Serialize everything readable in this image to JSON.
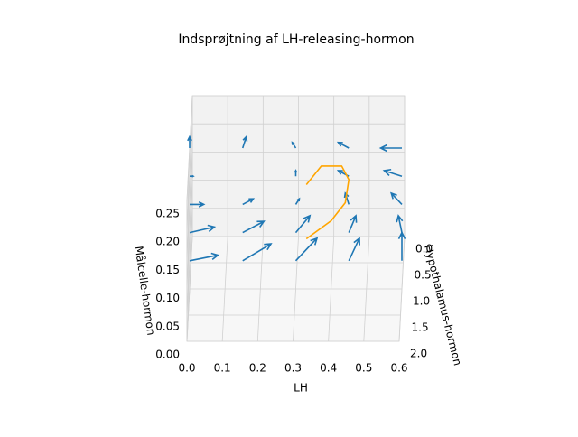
{
  "chart_data": {
    "type": "quiver3d",
    "title": "Indsprøjtning af LH-releasing-hormon",
    "xlabel": "LH",
    "ylabel": "Hypothalamus-hormon",
    "zlabel": "Målcelle-hormon",
    "xlim": [
      0,
      0.6
    ],
    "ylim": [
      0,
      2
    ],
    "zlim": [
      0,
      0.25
    ],
    "xticks": [
      {
        "value": 0,
        "label": "0.0"
      },
      0.1,
      0.2,
      0.3,
      0.4,
      0.5,
      0.6
    ],
    "yticks": [
      {
        "value": 0,
        "label": "0.0"
      },
      0.5,
      {
        "value": 1,
        "label": "1.0"
      },
      1.5,
      {
        "value": 2,
        "label": "2.0"
      }
    ],
    "zticks": [
      {
        "value": 0,
        "label": "0.00"
      },
      0.05,
      {
        "value": 0.1,
        "label": "0.10"
      },
      0.15,
      {
        "value": 0.2,
        "label": "0.20"
      },
      0.25
    ],
    "grid": true,
    "arrow_color": "#1f77b4",
    "arrows": {
      "x": [
        0,
        0.15,
        0.3,
        0.45,
        0.6,
        0,
        0.15,
        0.3,
        0.45,
        0.6,
        0,
        0.15,
        0.3,
        0.45,
        0.6,
        0,
        0.15,
        0.3,
        0.45,
        0.6,
        0,
        0.15,
        0.3,
        0.45,
        0.6
      ],
      "y": [
        1,
        1,
        1,
        1,
        1,
        1,
        1,
        1,
        1,
        1,
        1,
        1,
        1,
        1,
        1,
        1,
        1,
        1,
        1,
        1,
        1,
        1,
        1,
        1,
        1
      ],
      "z": [
        0.05,
        0.05,
        0.05,
        0.05,
        0.05,
        0.1,
        0.1,
        0.1,
        0.1,
        0.1,
        0.15,
        0.15,
        0.15,
        0.15,
        0.15,
        0.2,
        0.2,
        0.2,
        0.2,
        0.2,
        0.25,
        0.25,
        0.25,
        0.25,
        0.25
      ],
      "u": [
        0.08,
        0.08,
        0.06,
        0.03,
        0,
        0.07,
        0.06,
        0.04,
        0.02,
        -0.01,
        0.04,
        0.03,
        0.01,
        -0.01,
        -0.03,
        0.01,
        0,
        0,
        -0.03,
        -0.05,
        0,
        0.01,
        -0.01,
        -0.03,
        -0.06
      ],
      "v": [
        0,
        0,
        0,
        0,
        0,
        0,
        0,
        0,
        0,
        0,
        0,
        0,
        0,
        0,
        0,
        0,
        0,
        0,
        0,
        0,
        0,
        0,
        0,
        0,
        0
      ],
      "w": [
        0.01,
        0.03,
        0.04,
        0.04,
        0.05,
        0.01,
        0.02,
        0.03,
        0.03,
        0.03,
        0,
        0.01,
        0.01,
        0.02,
        0.02,
        0,
        0,
        0.01,
        0.01,
        0.01,
        0.02,
        0.02,
        0.01,
        0.01,
        0
      ]
    },
    "trajectory": {
      "color": "#ffa500",
      "x": [
        0.33,
        0.372,
        0.43,
        0.45,
        0.44,
        0.4,
        0.33
      ],
      "y": [
        1,
        1,
        1,
        1,
        1,
        1,
        1
      ],
      "z": [
        0.185,
        0.218,
        0.218,
        0.194,
        0.153,
        0.121,
        0.089
      ]
    }
  }
}
